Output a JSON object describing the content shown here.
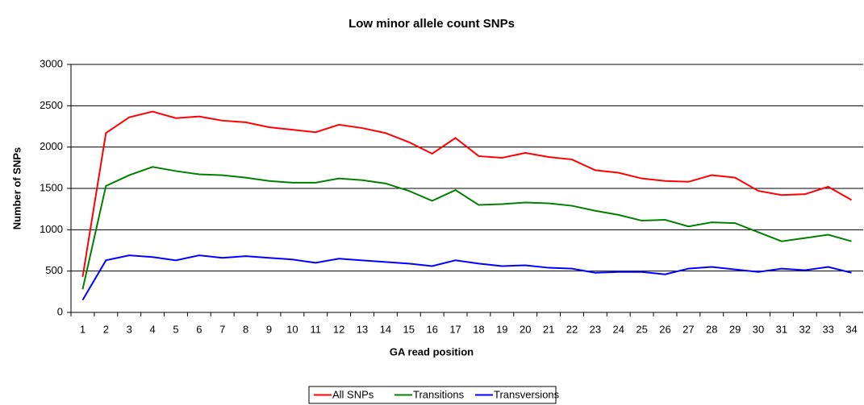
{
  "chart_data": {
    "type": "line",
    "title": "Low minor allele count SNPs",
    "x_label": "GA read position",
    "y_label": "Number of SNPs",
    "categories": [
      1,
      2,
      3,
      4,
      5,
      6,
      7,
      8,
      9,
      10,
      11,
      12,
      13,
      14,
      15,
      16,
      17,
      18,
      19,
      20,
      21,
      22,
      23,
      24,
      25,
      26,
      27,
      28,
      29,
      30,
      31,
      32,
      33,
      34
    ],
    "series": [
      {
        "name": "All SNPs",
        "color": "#ff0000",
        "values": [
          430,
          2170,
          2360,
          2430,
          2350,
          2370,
          2320,
          2300,
          2240,
          2210,
          2180,
          2270,
          2230,
          2170,
          2060,
          1920,
          2110,
          1890,
          1870,
          1930,
          1880,
          1850,
          1720,
          1690,
          1620,
          1590,
          1580,
          1660,
          1630,
          1470,
          1420,
          1430,
          1520,
          1360
        ]
      },
      {
        "name": "Transitions",
        "color": "#008000",
        "values": [
          280,
          1530,
          1660,
          1760,
          1710,
          1670,
          1660,
          1630,
          1590,
          1570,
          1570,
          1620,
          1600,
          1560,
          1470,
          1350,
          1480,
          1300,
          1310,
          1330,
          1320,
          1290,
          1230,
          1180,
          1110,
          1120,
          1040,
          1090,
          1080,
          970,
          860,
          900,
          940,
          860
        ]
      },
      {
        "name": "Transversions",
        "color": "#0000ff",
        "values": [
          150,
          630,
          690,
          670,
          630,
          690,
          660,
          680,
          660,
          640,
          600,
          650,
          630,
          610,
          590,
          560,
          630,
          590,
          560,
          570,
          540,
          530,
          480,
          490,
          490,
          460,
          530,
          550,
          520,
          490,
          530,
          510,
          550,
          480
        ]
      }
    ],
    "ylim": [
      0,
      3000
    ],
    "yticks": [
      0,
      500,
      1000,
      1500,
      2000,
      2500,
      3000
    ],
    "grid": true,
    "legend": "bottom"
  }
}
